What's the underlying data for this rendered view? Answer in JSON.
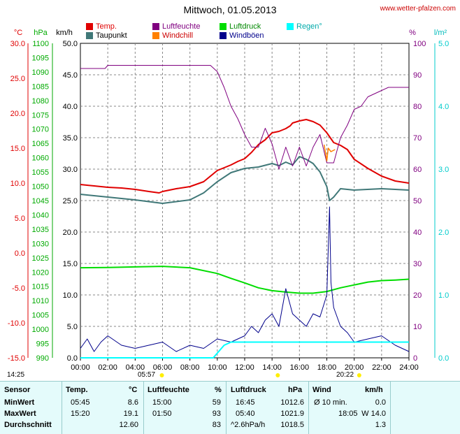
{
  "header": {
    "title": "Mittwoch, 01.05.2013",
    "site": "www.wetter-pfalzen.com"
  },
  "legend": [
    {
      "label": "Temp.",
      "color": "#e00000"
    },
    {
      "label": "Taupunkt",
      "color": "#407878"
    },
    {
      "label": "Luftfeuchte",
      "color": "#800080"
    },
    {
      "label": "Windchill",
      "color": "#ff8000"
    },
    {
      "label": "Luftdruck",
      "color": "#00dd00"
    },
    {
      "label": "Windböen",
      "color": "#00008b"
    },
    {
      "label": "Regen°",
      "color": "#00ffff"
    }
  ],
  "axes": {
    "temp_unit": "°C",
    "pressure_unit": "hPa",
    "wind_unit": "km/h",
    "humidity_unit": "%",
    "rain_unit": "l/m²",
    "temp_ticks": [
      "30.0",
      "25.0",
      "20.0",
      "15.0",
      "10.0",
      "5.0",
      "0.0",
      "-5.0",
      "-10.0",
      "-15.0"
    ],
    "pressure_ticks": [
      "1100",
      "1095",
      "1090",
      "1085",
      "1080",
      "1075",
      "1070",
      "1065",
      "1060",
      "1055",
      "1050",
      "1045",
      "1040",
      "1035",
      "1030",
      "1025",
      "1020",
      "1015",
      "1010",
      "1005",
      "1000",
      "995",
      "990"
    ],
    "wind_ticks": [
      "50.0",
      "45.0",
      "40.0",
      "35.0",
      "30.0",
      "25.0",
      "20.0",
      "15.0",
      "10.0",
      "5.0",
      "0.0"
    ],
    "humidity_ticks": [
      "100",
      "90",
      "80",
      "70",
      "60",
      "50",
      "40",
      "30",
      "20",
      "10",
      "0"
    ],
    "rain_ticks": [
      "5.0",
      "4.0",
      "3.0",
      "2.0",
      "1.0",
      "0.0"
    ],
    "x_ticks": [
      "00:00",
      "02:00",
      "04:00",
      "06:00",
      "08:00",
      "10:00",
      "12:00",
      "14:00",
      "16:00",
      "18:00",
      "20:00",
      "22:00",
      "24:00"
    ]
  },
  "sun": {
    "sunrise": "05:57",
    "sunset": "20:22",
    "first_mark": "14:25"
  },
  "chart_data": {
    "type": "line",
    "x_unit": "hours",
    "xlim": [
      0,
      24
    ],
    "series": [
      {
        "name": "Temp.",
        "axis": "°C",
        "ylim": [
          -15,
          30
        ],
        "x": [
          0,
          1,
          2,
          3,
          4,
          5,
          5.75,
          6,
          7,
          8,
          9,
          10,
          10.5,
          11,
          11.5,
          12,
          12.5,
          13,
          13.5,
          14,
          14.5,
          15,
          15.33,
          15.5,
          16,
          16.5,
          17,
          17.5,
          18,
          18.5,
          19,
          19.5,
          20,
          21,
          22,
          23,
          24
        ],
        "values": [
          9.8,
          9.6,
          9.4,
          9.3,
          9.1,
          8.8,
          8.6,
          8.8,
          9.2,
          9.5,
          10.2,
          11.8,
          12.2,
          12.6,
          13.1,
          13.5,
          14.4,
          15.5,
          16.2,
          17.2,
          17.4,
          17.8,
          18.2,
          18.6,
          18.9,
          19.1,
          18.8,
          18.3,
          17.2,
          15.8,
          15.4,
          14.8,
          13.4,
          12.1,
          11.0,
          10.3,
          10.0
        ]
      },
      {
        "name": "Taupunkt",
        "axis": "°C",
        "ylim": [
          -15,
          30
        ],
        "x": [
          0,
          2,
          4,
          6,
          8,
          9,
          10,
          11,
          12,
          13,
          14,
          14.5,
          15,
          15.5,
          16,
          16.5,
          17,
          17.5,
          18,
          18.2,
          18.5,
          19,
          20,
          22,
          24
        ],
        "values": [
          8.4,
          8.0,
          7.6,
          7.1,
          7.6,
          8.6,
          10.2,
          11.5,
          12.1,
          12.3,
          12.8,
          12.5,
          13.0,
          12.6,
          13.8,
          13.4,
          12.8,
          11.6,
          9.5,
          7.5,
          8.0,
          9.2,
          9.0,
          9.2,
          9.0
        ]
      },
      {
        "name": "Luftfeuchte",
        "axis": "%",
        "ylim": [
          0,
          100
        ],
        "x": [
          0,
          1.8,
          2,
          9.5,
          10,
          10.5,
          11,
          11.5,
          12,
          12.5,
          13,
          13.5,
          14,
          14.5,
          15,
          15.5,
          16,
          16.5,
          17,
          17.5,
          18,
          18.5,
          19,
          19.5,
          20,
          20.5,
          21,
          22,
          22.5,
          23,
          24
        ],
        "values": [
          92,
          92,
          93,
          93,
          91,
          86,
          80,
          76,
          71,
          67,
          67,
          73,
          68,
          60,
          67,
          61,
          67,
          61,
          67,
          71,
          62,
          62,
          70,
          74,
          79,
          80,
          83,
          85,
          86,
          86,
          86
        ]
      },
      {
        "name": "Luftdruck",
        "axis": "hPa",
        "ylim": [
          990,
          1100
        ],
        "x": [
          0,
          2,
          4,
          6,
          8,
          10,
          11,
          12,
          13,
          14,
          15,
          16,
          17,
          18,
          19,
          20,
          21,
          22,
          23,
          24
        ],
        "values": [
          1021.5,
          1021.6,
          1021.8,
          1022.0,
          1021.5,
          1019.5,
          1017.8,
          1016.2,
          1014.5,
          1013.5,
          1013.0,
          1012.6,
          1012.6,
          1013.2,
          1014.5,
          1015.5,
          1016.5,
          1017.0,
          1017.2,
          1017.5
        ]
      },
      {
        "name": "Windchill",
        "axis": "°C",
        "ylim": [
          -15,
          30
        ],
        "x": [
          17.8,
          18,
          18.1,
          18.3,
          18.6
        ],
        "values": [
          15.5,
          13.2,
          15.0,
          14.5,
          14.8
        ]
      },
      {
        "name": "Windböen",
        "axis": "km/h",
        "ylim": [
          0,
          50
        ],
        "x": [
          0,
          0.5,
          1,
          1.5,
          2,
          3,
          4,
          5,
          6,
          7,
          8,
          9,
          10,
          11,
          12,
          12.5,
          13,
          13.5,
          14,
          14.5,
          15,
          15.5,
          16,
          16.5,
          17,
          17.5,
          18,
          18.2,
          18.3,
          18.5,
          19,
          19.5,
          20,
          21,
          22,
          23,
          24
        ],
        "values": [
          1.5,
          3.0,
          1.0,
          2.5,
          3.5,
          2.0,
          1.5,
          2.0,
          2.5,
          1.0,
          2.0,
          1.5,
          3.0,
          2.5,
          3.5,
          5.0,
          4.0,
          6.0,
          7.0,
          5.0,
          11.0,
          7.0,
          6.0,
          5.0,
          7.0,
          6.5,
          10.0,
          24.0,
          12.0,
          8.0,
          5.0,
          4.0,
          2.5,
          3.0,
          3.5,
          2.0,
          1.0
        ]
      },
      {
        "name": "Regen°",
        "axis": "l/m²",
        "ylim": [
          0,
          5
        ],
        "x": [
          0,
          9.7,
          10.5,
          11,
          12,
          16,
          20,
          24
        ],
        "values": [
          0,
          0,
          0.2,
          0.25,
          0.25,
          0.25,
          0.25,
          0.25
        ]
      }
    ]
  },
  "table": {
    "headers": {
      "sensor": "Sensor",
      "temp": "Temp.",
      "temp_unit": "°C",
      "hum": "Luftfeuchte",
      "hum_unit": "%",
      "press": "Luftdruck",
      "press_unit": "hPa",
      "wind": "Wind",
      "wind_unit": "km/h"
    },
    "rows": [
      {
        "label": "MinWert",
        "temp_time": "05:45",
        "temp": "8.6",
        "hum_time": "15:00",
        "hum": "59",
        "press_time": "16:45",
        "press": "1012.6",
        "wind_time": "Ø 10 min.",
        "wind": "0.0"
      },
      {
        "label": "MaxWert",
        "temp_time": "15:20",
        "temp": "19.1",
        "hum_time": "01:50",
        "hum": "93",
        "press_time": "05:40",
        "press": "1021.9",
        "wind_time": "18:05",
        "wind": "W 14.0"
      },
      {
        "label": "Durchschnitt",
        "temp_time": "",
        "temp": "12.60",
        "hum_time": "",
        "hum": "83",
        "press_time": "^2.6hPa/h",
        "press": "1018.5",
        "wind_time": "",
        "wind": "1.3"
      }
    ]
  }
}
